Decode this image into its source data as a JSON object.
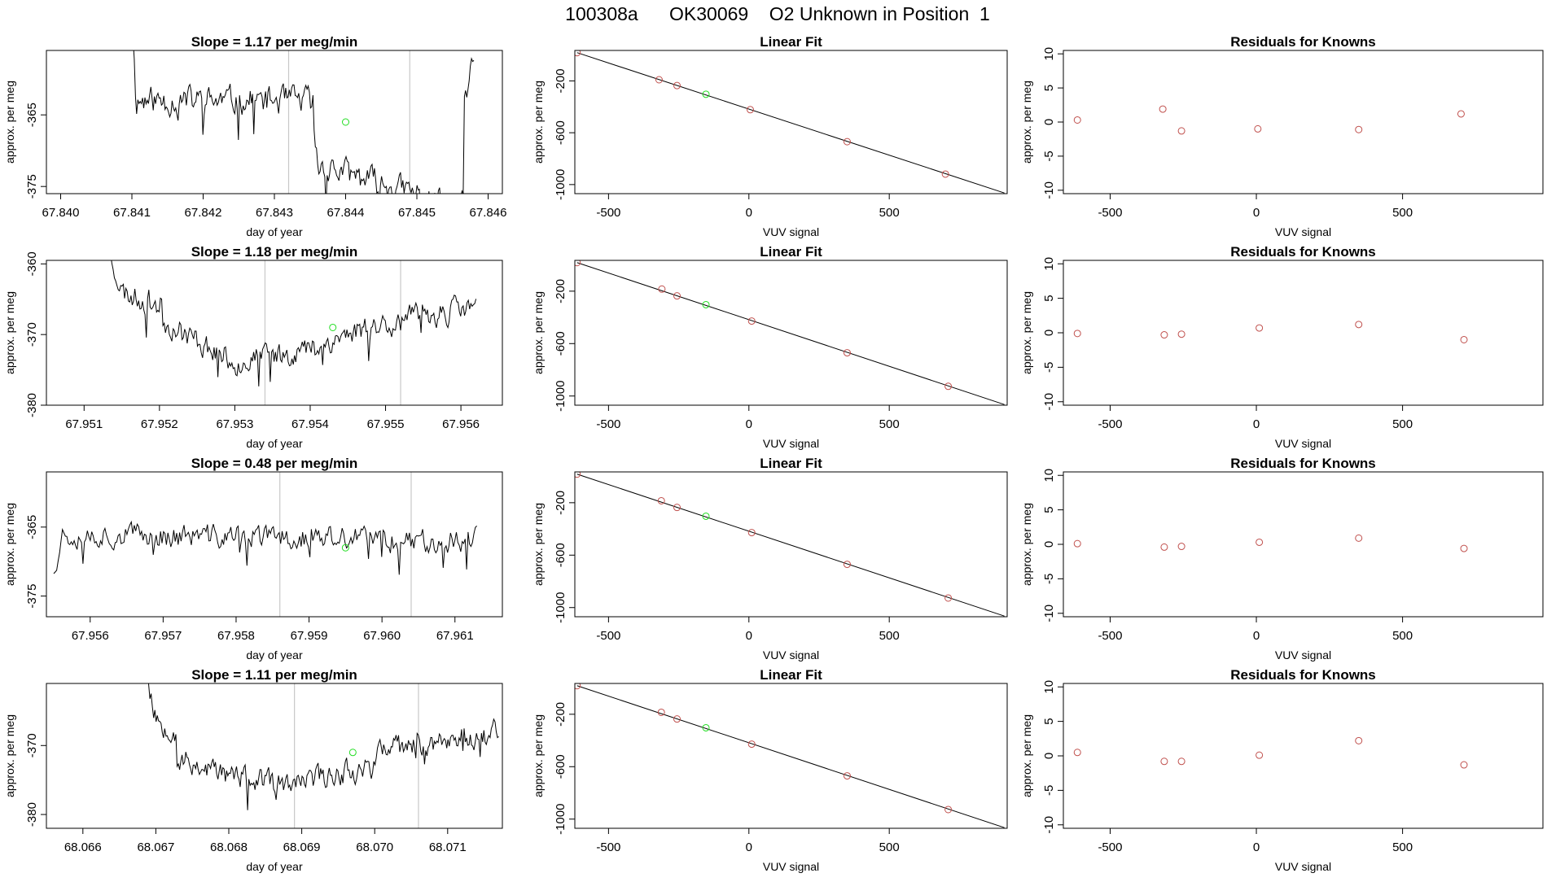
{
  "page_title": "100308a      OK30069    O2 Unknown in Position  1",
  "colors": {
    "trace": "#000000",
    "known_point": "#c0504d",
    "unknown_point": "#22dd22",
    "marker_line": "#c8c8c8",
    "fit_line": "#000000"
  },
  "chart_data": [
    {
      "type": "line",
      "panel": "time-series",
      "row": 1,
      "title": "Slope =  1.17  per meg/min",
      "xlabel": "day of year",
      "ylabel": "approx. per meg",
      "xlim": [
        67.8398,
        67.8462
      ],
      "ylim": [
        -376,
        -356
      ],
      "xticks": [
        67.84,
        67.841,
        67.842,
        67.843,
        67.844,
        67.845,
        67.846
      ],
      "xtick_labels": [
        "67.840",
        "67.841",
        "67.842",
        "67.843",
        "67.844",
        "67.845",
        "67.846"
      ],
      "yticks": [
        -365,
        -375
      ],
      "ytick_labels": [
        "-365",
        "-375"
      ],
      "vlines": [
        67.8432,
        67.8449
      ],
      "unknown_point": {
        "x": 67.844,
        "y": -366
      },
      "series": [
        {
          "x_start": 67.841,
          "x_end": 67.8458,
          "baseline": -365,
          "amplitude": 2.2,
          "seed": 11,
          "segments": [
            [
              0.0,
              -350,
              -363
            ],
            [
              0.012,
              -363,
              -363
            ],
            [
              0.53,
              -368,
              -372
            ],
            [
              0.545,
              -372,
              -378
            ],
            [
              0.97,
              -363,
              -358
            ],
            [
              1.0,
              -358,
              -350
            ]
          ]
        }
      ]
    },
    {
      "type": "scatter",
      "panel": "linear-fit",
      "row": 1,
      "title": "Linear Fit",
      "xlabel": "VUV signal",
      "ylabel": "approx. per meg",
      "xlim": [
        -620,
        920
      ],
      "ylim": [
        -1070,
        35
      ],
      "xticks": [
        -500,
        0,
        500
      ],
      "xtick_labels": [
        "-500",
        "0",
        "500"
      ],
      "yticks": [
        -200,
        -600,
        -1000
      ],
      "ytick_labels": [
        "-200",
        "-600",
        "-1000"
      ],
      "fit": {
        "x": [
          -612,
          910
        ],
        "y": [
          18,
          -1065
        ]
      },
      "knowns": [
        {
          "x": -612,
          "y": 18
        },
        {
          "x": -320,
          "y": -191
        },
        {
          "x": -256,
          "y": -236
        },
        {
          "x": 5,
          "y": -422
        },
        {
          "x": 350,
          "y": -669
        },
        {
          "x": 700,
          "y": -919
        }
      ],
      "unknown": {
        "x": -153,
        "y": -303
      }
    },
    {
      "type": "scatter",
      "panel": "residuals",
      "row": 1,
      "title": "Residuals for Knowns",
      "xlabel": "VUV signal",
      "ylabel": "approx. per meg",
      "xlim": [
        -660,
        980
      ],
      "ylim": [
        -10.5,
        10.5
      ],
      "xticks": [
        -500,
        0,
        500
      ],
      "xtick_labels": [
        "-500",
        "0",
        "500"
      ],
      "yticks": [
        10,
        5,
        0,
        -5,
        -10
      ],
      "ytick_labels": [
        "10",
        "5",
        "0",
        "-5",
        "-10"
      ],
      "points": [
        {
          "x": -612,
          "y": 0.3
        },
        {
          "x": -320,
          "y": 1.9
        },
        {
          "x": -256,
          "y": -1.3
        },
        {
          "x": 5,
          "y": -1.0
        },
        {
          "x": 350,
          "y": -1.1
        },
        {
          "x": 700,
          "y": 1.2
        }
      ]
    },
    {
      "type": "line",
      "panel": "time-series",
      "row": 2,
      "title": "Slope =  1.18  per meg/min",
      "xlabel": "day of year",
      "ylabel": "approx. per meg",
      "xlim": [
        67.9505,
        67.95655
      ],
      "ylim": [
        -380,
        -359.5
      ],
      "xticks": [
        67.951,
        67.952,
        67.953,
        67.954,
        67.955,
        67.956
      ],
      "xtick_labels": [
        "67.951",
        "67.952",
        "67.953",
        "67.954",
        "67.955",
        "67.956"
      ],
      "yticks": [
        -360,
        -370,
        -380
      ],
      "ytick_labels": [
        "-360",
        "-370",
        "-380"
      ],
      "vlines": [
        67.9534,
        67.9552
      ],
      "unknown_point": {
        "x": 67.9543,
        "y": -369
      },
      "series": [
        {
          "x_start": 67.9513,
          "x_end": 67.9562,
          "baseline": -370,
          "amplitude": 2.0,
          "seed": 23,
          "segments": [
            [
              0.0,
              -356,
              -364
            ],
            [
              0.04,
              -364,
              -366
            ],
            [
              0.15,
              -368,
              -374
            ],
            [
              0.35,
              -374,
              -372
            ],
            [
              0.55,
              -372,
              -369
            ],
            [
              0.7,
              -369,
              -366
            ],
            [
              1.0,
              -368,
              -366
            ]
          ]
        }
      ]
    },
    {
      "type": "scatter",
      "panel": "linear-fit",
      "row": 2,
      "title": "Linear Fit",
      "xlabel": "VUV signal",
      "ylabel": "approx. per meg",
      "xlim": [
        -620,
        920
      ],
      "ylim": [
        -1070,
        35
      ],
      "xticks": [
        -500,
        0,
        500
      ],
      "xtick_labels": [
        "-500",
        "0",
        "500"
      ],
      "yticks": [
        -200,
        -600,
        -1000
      ],
      "ytick_labels": [
        "-200",
        "-600",
        "-1000"
      ],
      "fit": {
        "x": [
          -612,
          910
        ],
        "y": [
          18,
          -1065
        ]
      },
      "knowns": [
        {
          "x": -612,
          "y": 18
        },
        {
          "x": -310,
          "y": -184
        },
        {
          "x": -256,
          "y": -236
        },
        {
          "x": 10,
          "y": -428
        },
        {
          "x": 350,
          "y": -670
        },
        {
          "x": 710,
          "y": -926
        }
      ],
      "unknown": {
        "x": -153,
        "y": -303
      }
    },
    {
      "type": "scatter",
      "panel": "residuals",
      "row": 2,
      "title": "Residuals for Knowns",
      "xlabel": "VUV signal",
      "ylabel": "approx. per meg",
      "xlim": [
        -660,
        980
      ],
      "ylim": [
        -10.5,
        10.5
      ],
      "xticks": [
        -500,
        0,
        500
      ],
      "xtick_labels": [
        "-500",
        "0",
        "500"
      ],
      "yticks": [
        10,
        5,
        0,
        -5,
        -10
      ],
      "ytick_labels": [
        "10",
        "5",
        "0",
        "-5",
        "-10"
      ],
      "points": [
        {
          "x": -612,
          "y": -0.1
        },
        {
          "x": -315,
          "y": -0.3
        },
        {
          "x": -256,
          "y": -0.2
        },
        {
          "x": 10,
          "y": 0.7
        },
        {
          "x": 350,
          "y": 1.2
        },
        {
          "x": 710,
          "y": -1.0
        }
      ]
    },
    {
      "type": "line",
      "panel": "time-series",
      "row": 3,
      "title": "Slope =  0.48  per meg/min",
      "xlabel": "day of year",
      "ylabel": "approx. per meg",
      "xlim": [
        67.9554,
        67.96165
      ],
      "ylim": [
        -378,
        -357
      ],
      "xticks": [
        67.956,
        67.957,
        67.958,
        67.959,
        67.96,
        67.961
      ],
      "xtick_labels": [
        "67.956",
        "67.957",
        "67.958",
        "67.959",
        "67.960",
        "67.961"
      ],
      "yticks": [
        -365,
        -375
      ],
      "ytick_labels": [
        "-365",
        "-375"
      ],
      "vlines": [
        67.9586,
        67.9604
      ],
      "unknown_point": {
        "x": 67.9595,
        "y": -368
      },
      "series": [
        {
          "x_start": 67.9555,
          "x_end": 67.9613,
          "baseline": -367.5,
          "amplitude": 2.0,
          "seed": 37,
          "segments": [
            [
              0.0,
              -371,
              -366
            ],
            [
              0.02,
              -366,
              -367
            ],
            [
              0.96,
              -367,
              -366
            ],
            [
              1.0,
              -366,
              -352
            ]
          ]
        }
      ]
    },
    {
      "type": "scatter",
      "panel": "linear-fit",
      "row": 3,
      "title": "Linear Fit",
      "xlabel": "VUV signal",
      "ylabel": "approx. per meg",
      "xlim": [
        -620,
        920
      ],
      "ylim": [
        -1070,
        35
      ],
      "xticks": [
        -500,
        0,
        500
      ],
      "xtick_labels": [
        "-500",
        "0",
        "500"
      ],
      "yticks": [
        -200,
        -600,
        -1000
      ],
      "ytick_labels": [
        "-200",
        "-600",
        "-1000"
      ],
      "fit": {
        "x": [
          -612,
          910
        ],
        "y": [
          18,
          -1065
        ]
      },
      "knowns": [
        {
          "x": -612,
          "y": 18
        },
        {
          "x": -312,
          "y": -185
        },
        {
          "x": -256,
          "y": -236
        },
        {
          "x": 10,
          "y": -428
        },
        {
          "x": 350,
          "y": -670
        },
        {
          "x": 710,
          "y": -927
        }
      ],
      "unknown": {
        "x": -153,
        "y": -303
      }
    },
    {
      "type": "scatter",
      "panel": "residuals",
      "row": 3,
      "title": "Residuals for Knowns",
      "xlabel": "VUV signal",
      "ylabel": "approx. per meg",
      "xlim": [
        -660,
        980
      ],
      "ylim": [
        -10.5,
        10.5
      ],
      "xticks": [
        -500,
        0,
        500
      ],
      "xtick_labels": [
        "-500",
        "0",
        "500"
      ],
      "yticks": [
        10,
        5,
        0,
        -5,
        -10
      ],
      "ytick_labels": [
        "10",
        "5",
        "0",
        "-5",
        "-10"
      ],
      "points": [
        {
          "x": -612,
          "y": 0.1
        },
        {
          "x": -315,
          "y": -0.4
        },
        {
          "x": -256,
          "y": -0.3
        },
        {
          "x": 10,
          "y": 0.3
        },
        {
          "x": 350,
          "y": 0.9
        },
        {
          "x": 710,
          "y": -0.6
        }
      ]
    },
    {
      "type": "line",
      "panel": "time-series",
      "row": 4,
      "title": "Slope =  1.11  per meg/min",
      "xlabel": "day of year",
      "ylabel": "approx. per meg",
      "xlim": [
        68.0655,
        68.07175
      ],
      "ylim": [
        -382,
        -361
      ],
      "xticks": [
        68.066,
        68.067,
        68.068,
        68.069,
        68.07,
        68.071
      ],
      "xtick_labels": [
        "68.066",
        "68.067",
        "68.068",
        "68.069",
        "68.070",
        "68.071"
      ],
      "yticks": [
        -370,
        -380
      ],
      "ytick_labels": [
        "-370",
        "-380"
      ],
      "vlines": [
        68.0689,
        68.0706
      ],
      "unknown_point": {
        "x": 68.0697,
        "y": -371
      },
      "series": [
        {
          "x_start": 68.0668,
          "x_end": 68.0717,
          "baseline": -373,
          "amplitude": 2.0,
          "seed": 53,
          "segments": [
            [
              0.0,
              -356,
              -366
            ],
            [
              0.04,
              -366,
              -368
            ],
            [
              0.1,
              -372,
              -375
            ],
            [
              0.3,
              -375,
              -376
            ],
            [
              0.45,
              -375,
              -373
            ],
            [
              0.65,
              -371,
              -368
            ],
            [
              1.0,
              -368,
              -366
            ]
          ]
        }
      ]
    },
    {
      "type": "scatter",
      "panel": "linear-fit",
      "row": 4,
      "title": "Linear Fit",
      "xlabel": "VUV signal",
      "ylabel": "approx. per meg",
      "xlim": [
        -620,
        920
      ],
      "ylim": [
        -1070,
        35
      ],
      "xticks": [
        -500,
        0,
        500
      ],
      "xtick_labels": [
        "-500",
        "0",
        "500"
      ],
      "yticks": [
        -200,
        -600,
        -1000
      ],
      "ytick_labels": [
        "-200",
        "-600",
        "-1000"
      ],
      "fit": {
        "x": [
          -612,
          910
        ],
        "y": [
          18,
          -1065
        ]
      },
      "knowns": [
        {
          "x": -612,
          "y": 18
        },
        {
          "x": -312,
          "y": -185
        },
        {
          "x": -256,
          "y": -236
        },
        {
          "x": 10,
          "y": -428
        },
        {
          "x": 350,
          "y": -670
        },
        {
          "x": 710,
          "y": -927
        }
      ],
      "unknown": {
        "x": -153,
        "y": -303
      }
    },
    {
      "type": "scatter",
      "panel": "residuals",
      "row": 4,
      "title": "Residuals for Knowns",
      "xlabel": "VUV signal",
      "ylabel": "approx. per meg",
      "xlim": [
        -660,
        980
      ],
      "ylim": [
        -10.5,
        10.5
      ],
      "xticks": [
        -500,
        0,
        500
      ],
      "xtick_labels": [
        "-500",
        "0",
        "500"
      ],
      "yticks": [
        10,
        5,
        0,
        -5,
        -10
      ],
      "ytick_labels": [
        "10",
        "5",
        "0",
        "-5",
        "-10"
      ],
      "points": [
        {
          "x": -612,
          "y": 0.5
        },
        {
          "x": -315,
          "y": -0.8
        },
        {
          "x": -256,
          "y": -0.8
        },
        {
          "x": 10,
          "y": 0.1
        },
        {
          "x": 350,
          "y": 2.2
        },
        {
          "x": 710,
          "y": -1.3
        }
      ]
    }
  ]
}
